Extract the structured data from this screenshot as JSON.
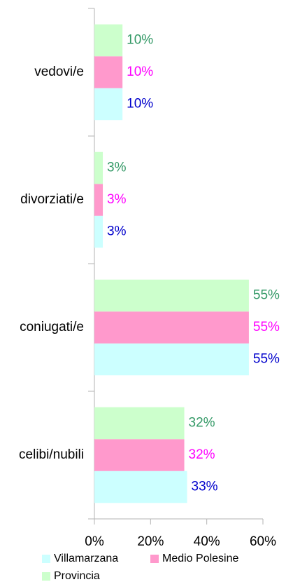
{
  "chart_data": {
    "type": "bar",
    "orientation": "horizontal",
    "categories": [
      "vedovi/e",
      "divorziati/e",
      "coniugati/e",
      "celibi/nubili"
    ],
    "series": [
      {
        "name": "Villamarzana",
        "color": "#ccffff",
        "label_color": "#0000cc",
        "values": [
          10,
          3,
          55,
          33
        ],
        "value_labels": [
          "10%",
          "3%",
          "55%",
          "33%"
        ]
      },
      {
        "name": "Medio Polesine",
        "color": "#ff99cc",
        "label_color": "#ff00ff",
        "values": [
          10,
          3,
          55,
          32
        ],
        "value_labels": [
          "10%",
          "3%",
          "55%",
          "32%"
        ]
      },
      {
        "name": "Provincia",
        "color": "#ccffcc",
        "label_color": "#339966",
        "values": [
          10,
          3,
          55,
          32
        ],
        "value_labels": [
          "10%",
          "3%",
          "55%",
          "32%"
        ]
      }
    ],
    "xlim": [
      0,
      60
    ],
    "xticks": [
      {
        "value": 0,
        "label": "0%"
      },
      {
        "value": 20,
        "label": "20%"
      },
      {
        "value": 40,
        "label": "40%"
      },
      {
        "value": 60,
        "label": "60%"
      }
    ],
    "legend": "bottom"
  }
}
